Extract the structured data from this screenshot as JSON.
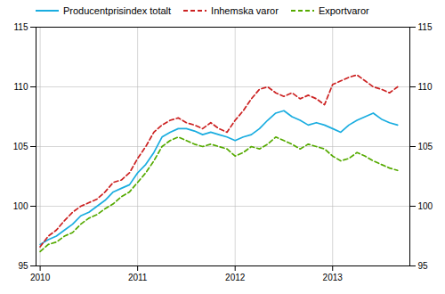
{
  "chart_data": {
    "type": "line",
    "x": [
      2010.0,
      2010.0833333333333,
      2010.1666666666667,
      2010.25,
      2010.3333333333333,
      2010.4166666666667,
      2010.5,
      2010.5833333333333,
      2010.6666666666667,
      2010.75,
      2010.8333333333333,
      2010.9166666666667,
      2011.0,
      2011.0833333333333,
      2011.1666666666667,
      2011.25,
      2011.3333333333333,
      2011.4166666666667,
      2011.5,
      2011.5833333333333,
      2011.6666666666667,
      2011.75,
      2011.8333333333333,
      2011.9166666666667,
      2012.0,
      2012.0833333333333,
      2012.1666666666667,
      2012.25,
      2012.3333333333333,
      2012.4166666666667,
      2012.5,
      2012.5833333333333,
      2012.6666666666667,
      2012.75,
      2012.8333333333333,
      2012.9166666666667,
      2013.0,
      2013.0833333333333,
      2013.1666666666667,
      2013.25,
      2013.3333333333333,
      2013.4166666666667,
      2013.5,
      2013.5833333333333,
      2013.6666666666667
    ],
    "series": [
      {
        "name": "Producentprisindex totalt",
        "color": "#1aade0",
        "line_style": "solid",
        "values": [
          96.8,
          97.2,
          97.5,
          98.0,
          98.5,
          99.2,
          99.5,
          100.0,
          100.5,
          101.2,
          101.5,
          101.8,
          102.8,
          103.5,
          104.5,
          105.8,
          106.2,
          106.5,
          106.5,
          106.3,
          106.0,
          106.2,
          106.0,
          105.8,
          105.5,
          105.8,
          106.0,
          106.5,
          107.2,
          107.8,
          108.0,
          107.5,
          107.2,
          106.8,
          107.0,
          106.8,
          106.5,
          106.2,
          106.8,
          107.2,
          107.5,
          107.8,
          107.3,
          107.0,
          106.8
        ]
      },
      {
        "name": "Inhemska varor",
        "color": "#cc2222",
        "line_style": "dashed",
        "values": [
          96.6,
          97.5,
          98.0,
          98.8,
          99.5,
          100.0,
          100.3,
          100.6,
          101.2,
          102.0,
          102.2,
          102.8,
          104.0,
          105.0,
          106.2,
          106.8,
          107.2,
          107.4,
          107.0,
          106.8,
          106.5,
          107.0,
          106.5,
          106.2,
          107.2,
          108.0,
          109.0,
          109.8,
          110.0,
          109.5,
          109.2,
          109.5,
          109.0,
          109.3,
          109.0,
          108.5,
          110.2,
          110.5,
          110.8,
          111.0,
          110.5,
          110.0,
          109.8,
          109.5,
          110.0
        ]
      },
      {
        "name": "Exportvaror",
        "color": "#55aa00",
        "line_style": "dashed",
        "values": [
          96.2,
          96.8,
          97.0,
          97.5,
          97.8,
          98.5,
          99.0,
          99.3,
          99.8,
          100.2,
          100.8,
          101.2,
          102.0,
          102.8,
          103.8,
          105.0,
          105.5,
          105.8,
          105.5,
          105.2,
          105.0,
          105.2,
          105.0,
          104.8,
          104.2,
          104.5,
          105.0,
          104.8,
          105.2,
          105.8,
          105.5,
          105.2,
          104.8,
          105.2,
          105.0,
          104.8,
          104.2,
          103.8,
          104.0,
          104.5,
          104.2,
          103.8,
          103.5,
          103.2,
          103.0
        ]
      }
    ],
    "xlim": [
      2009.958,
      2013.792
    ],
    "xticks": [
      2010,
      2011,
      2012,
      2013
    ],
    "ylim": [
      95,
      115
    ],
    "yticks": [
      95,
      100,
      105,
      110,
      115
    ],
    "grid": true,
    "legend": "upper left"
  }
}
